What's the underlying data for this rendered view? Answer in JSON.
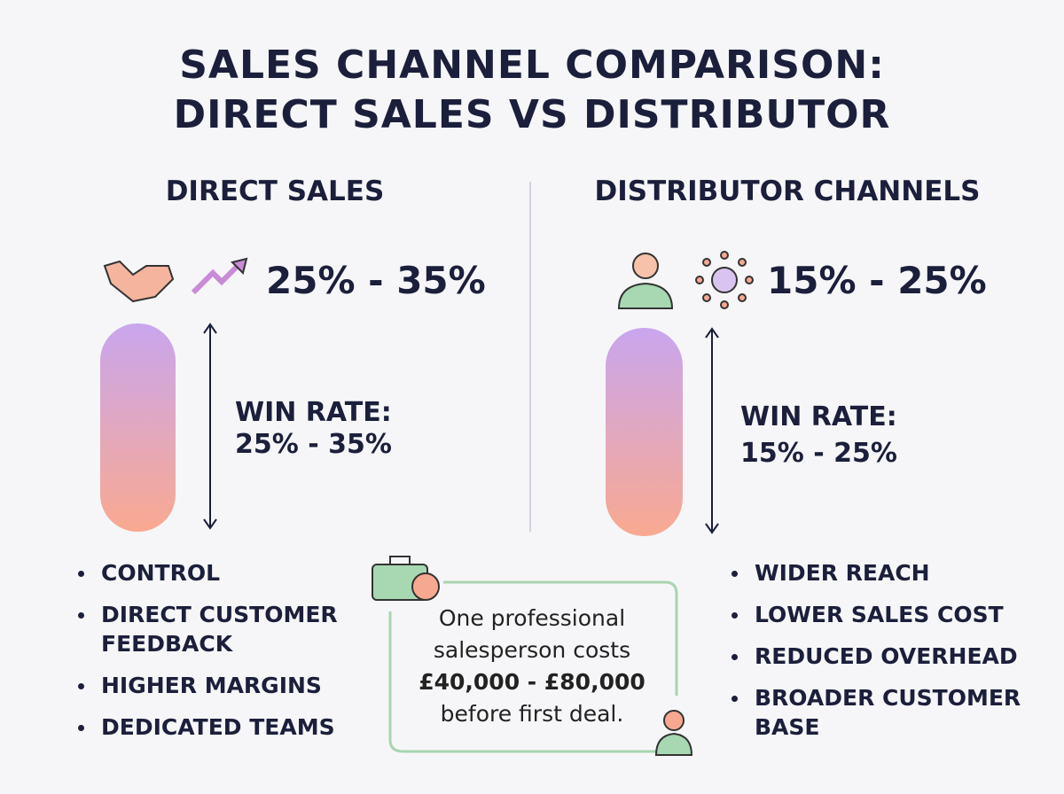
{
  "title": [
    "SALES CHANNEL COMPARISON:",
    "DIRECT SALES VS DISTRIBUTOR"
  ],
  "left": {
    "heading": "DIRECT SALES",
    "range": "25% - 35%",
    "win_rate_label": "WIN RATE:",
    "win_rate": "25% - 35%",
    "bullets": [
      "CONTROL",
      "DIRECT CUSTOMER FEEDBACK",
      "HIGHER MARGINS",
      "DEDICATED TEAMS"
    ]
  },
  "right": {
    "heading": "DISTRIBUTOR CHANNELS",
    "range": "15% - 25%",
    "win_rate_label": "WIN RATE:",
    "win_rate": "15% - 25%",
    "bullets": [
      "WIDER REACH",
      "LOWER SALES COST",
      "REDUCED OVERHEAD",
      "BROADER CUSTOMER BASE"
    ]
  },
  "note": [
    "One professional",
    "salesperson costs",
    "£40,000 - £80,000",
    "before first deal."
  ]
}
